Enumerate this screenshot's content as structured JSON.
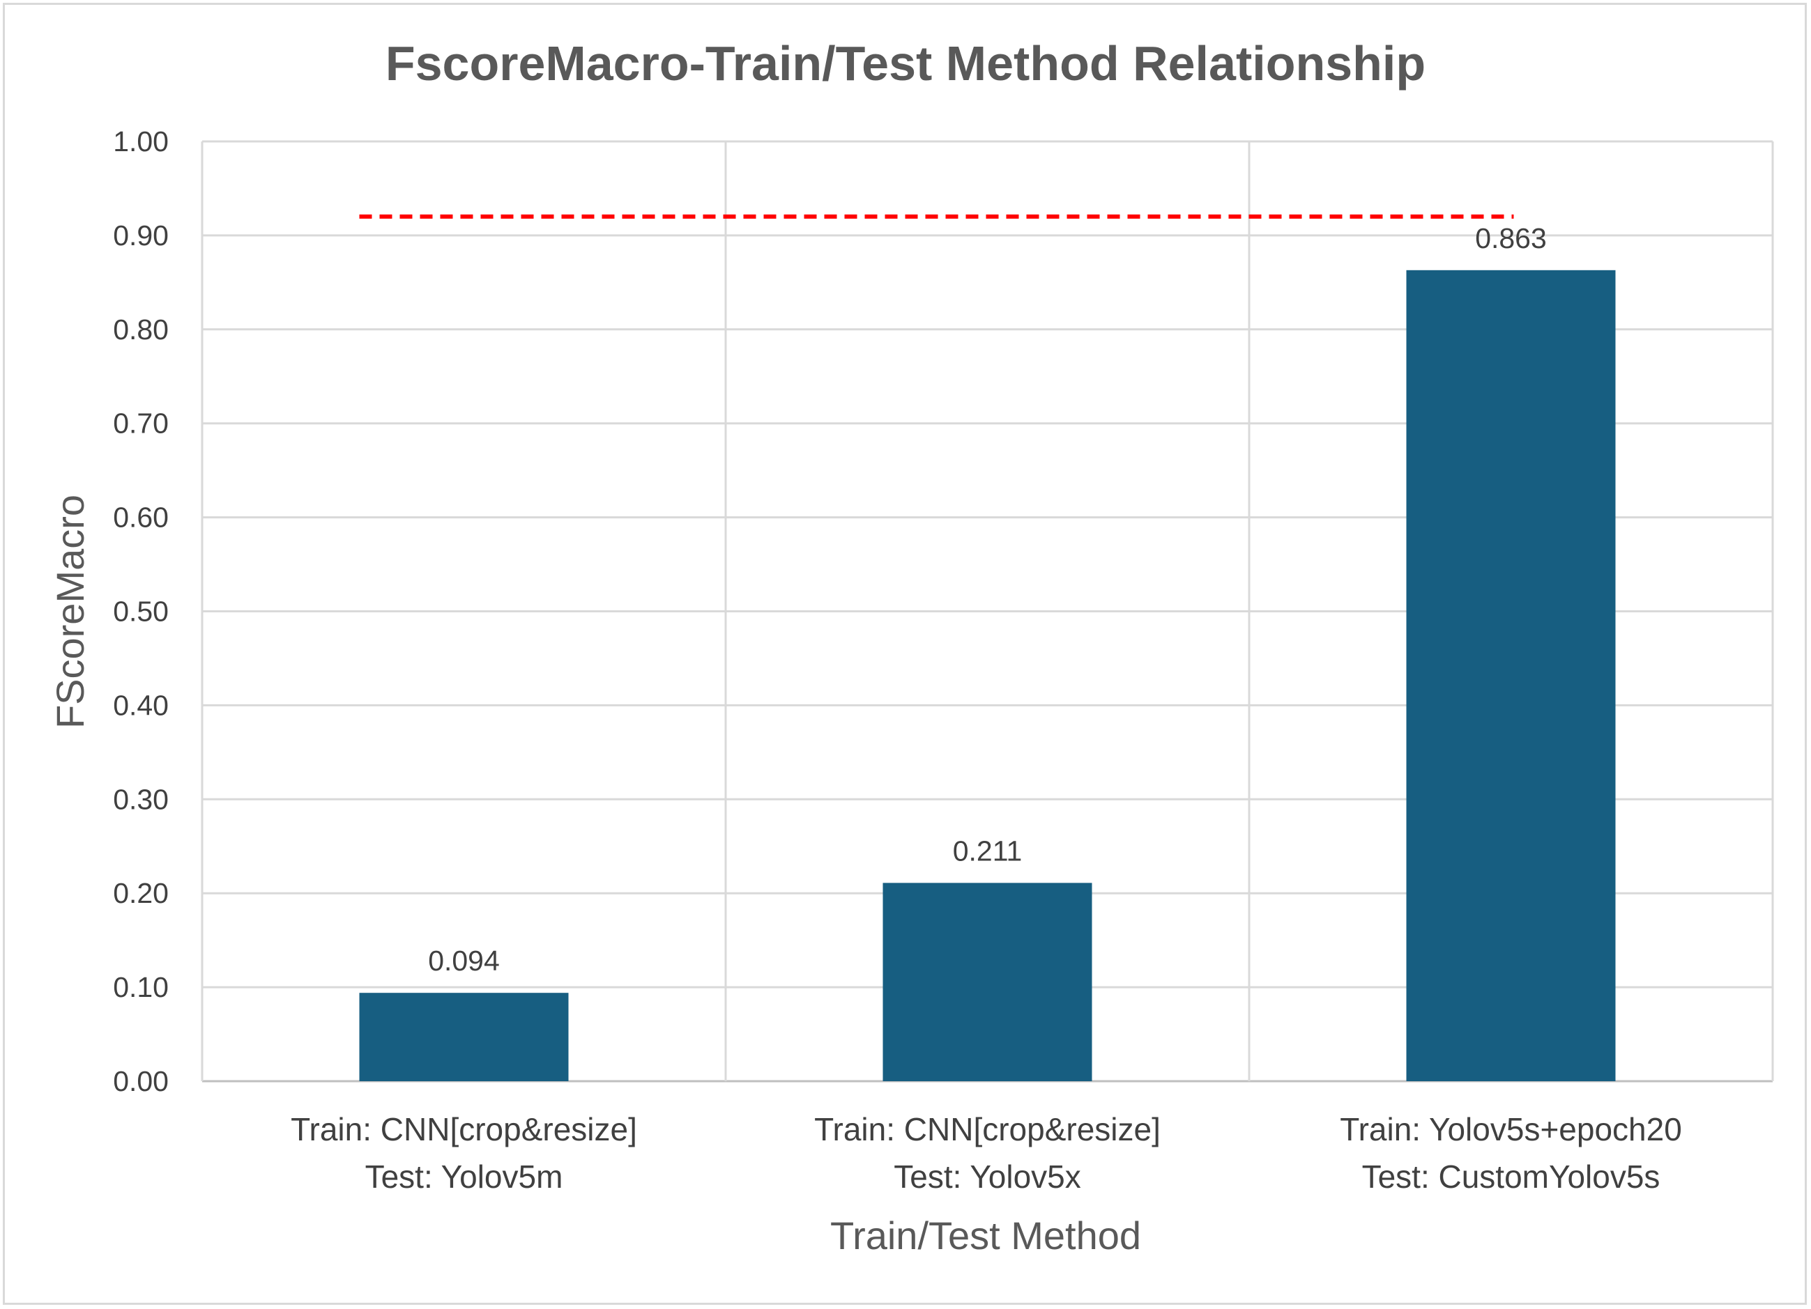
{
  "chart_data": {
    "type": "bar",
    "title": "FscoreMacro-Train/Test Method Relationship",
    "xlabel": "Train/Test Method",
    "ylabel": "FScoreMacro",
    "categories": [
      [
        "Train: CNN[crop&resize]",
        "Test: Yolov5m"
      ],
      [
        "Train: CNN[crop&resize]",
        "Test: Yolov5x"
      ],
      [
        "Train: Yolov5s+epoch20",
        "Test: CustomYolov5s"
      ]
    ],
    "values": [
      0.094,
      0.211,
      0.863
    ],
    "data_labels": [
      "0.094",
      "0.211",
      "0.863"
    ],
    "ylim": [
      0,
      1.0
    ],
    "yticks": [
      "0.00",
      "0.10",
      "0.20",
      "0.30",
      "0.40",
      "0.50",
      "0.60",
      "0.70",
      "0.80",
      "0.90",
      "1.00"
    ],
    "reference_line": {
      "value": 0.92,
      "style": "dashed"
    },
    "grid": true,
    "legend": "none",
    "colors": {
      "bar": "#175e81",
      "reference_line": "#ff0000",
      "grid": "#d9d9d9"
    }
  }
}
